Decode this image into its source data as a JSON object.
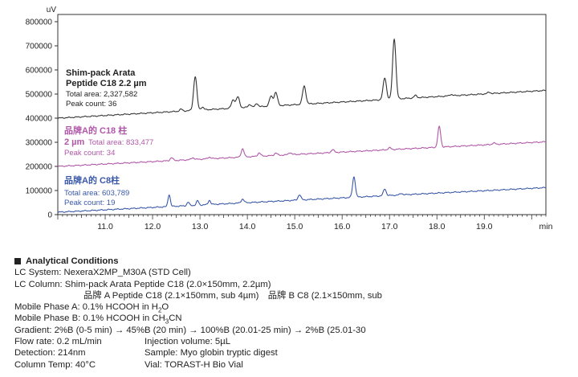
{
  "chart_data": {
    "type": "line",
    "y_unit_label": "uV",
    "x_unit_label": "min",
    "xlim": [
      10.0,
      20.3
    ],
    "ylim": [
      0,
      830000
    ],
    "x_ticks": [
      "11.0",
      "12.0",
      "13.0",
      "14.0",
      "15.0",
      "16.0",
      "17.0",
      "18.0",
      "19.0"
    ],
    "x_tick_values": [
      11,
      12,
      13,
      14,
      15,
      16,
      17,
      18,
      19
    ],
    "y_ticks": [
      "0",
      "100000",
      "200000",
      "300000",
      "400000",
      "500000",
      "600000",
      "700000",
      "800000"
    ],
    "y_tick_values": [
      0,
      100000,
      200000,
      300000,
      400000,
      500000,
      600000,
      700000,
      800000
    ],
    "grid": false,
    "series": [
      {
        "key": "arata",
        "color": "#333333",
        "label_lines": [
          "Shim-pack Arata",
          "Peptide C18 2.2 µm"
        ],
        "area_text": "Total area: 2,327,582",
        "count_text": "Peak count: 36",
        "baseline": [
          [
            10.0,
            400000
          ],
          [
            20.3,
            515000
          ]
        ],
        "peaks": [
          [
            12.6,
            8000,
            0.03
          ],
          [
            12.9,
            140000,
            0.035
          ],
          [
            13.05,
            12000,
            0.03
          ],
          [
            13.7,
            35000,
            0.035
          ],
          [
            13.8,
            45000,
            0.035
          ],
          [
            14.05,
            12000,
            0.03
          ],
          [
            14.2,
            14000,
            0.03
          ],
          [
            14.5,
            40000,
            0.035
          ],
          [
            14.6,
            55000,
            0.035
          ],
          [
            15.2,
            75000,
            0.035
          ],
          [
            16.9,
            90000,
            0.035
          ],
          [
            17.1,
            250000,
            0.035
          ],
          [
            17.55,
            10000,
            0.03
          ],
          [
            18.3,
            6000,
            0.03
          ],
          [
            19.1,
            6000,
            0.03
          ]
        ]
      },
      {
        "key": "brandA_c18",
        "color": "#b057a8",
        "label_lines": [
          "品牌A的 C18 柱"
        ],
        "size_text": "2 µm",
        "area_text": "Total area: 833,477",
        "count_text": "Peak count: 34",
        "baseline": [
          [
            10.0,
            200000
          ],
          [
            20.3,
            302000
          ]
        ],
        "peaks": [
          [
            12.4,
            12000,
            0.03
          ],
          [
            12.85,
            8000,
            0.03
          ],
          [
            13.2,
            7000,
            0.03
          ],
          [
            13.9,
            35000,
            0.03
          ],
          [
            14.25,
            14000,
            0.03
          ],
          [
            14.6,
            10000,
            0.03
          ],
          [
            14.9,
            9000,
            0.03
          ],
          [
            15.8,
            12000,
            0.03
          ],
          [
            17.0,
            8000,
            0.03
          ],
          [
            18.05,
            85000,
            0.03
          ],
          [
            19.2,
            6000,
            0.03
          ]
        ]
      },
      {
        "key": "brandA_c8",
        "color": "#3a58a8",
        "label_lines": [
          "品牌A的 C8柱"
        ],
        "area_text": "Total area: 603,789",
        "count_text": "Peak count: 19",
        "baseline": [
          [
            10.0,
            10000
          ],
          [
            20.3,
            112000
          ]
        ],
        "peaks": [
          [
            12.35,
            50000,
            0.025
          ],
          [
            12.75,
            14000,
            0.025
          ],
          [
            12.95,
            18000,
            0.025
          ],
          [
            13.2,
            18000,
            0.025
          ],
          [
            13.9,
            16000,
            0.03
          ],
          [
            15.1,
            22000,
            0.03
          ],
          [
            16.25,
            85000,
            0.03
          ],
          [
            16.9,
            28000,
            0.03
          ],
          [
            17.25,
            6000,
            0.03
          ]
        ]
      }
    ]
  },
  "conditions": {
    "heading": "Analytical Conditions",
    "lc_system": "LC System: NexeraX2MP_M30A (STD Cell)",
    "lc_column": "LC Column: Shim-pack Arata Peptide C18 (2.0×150mm, 2.2µm)",
    "lc_column_2": "品牌 A Peptide C18 (2.1×150mm, sub 4µm)　品牌 B C8 (2.1×150mm, sub",
    "mobile_a_prefix": "Mobile Phase A: 0.1% HCOOH in H",
    "mobile_a_sub": "2",
    "mobile_a_suffix": "O",
    "mobile_b_prefix": "Mobile Phase B: 0.1% HCOOH in CH",
    "mobile_b_sub": "3",
    "mobile_b_suffix": "CN",
    "gradient": "Gradient: 2%B (0-5 min) → 45%B (20 min) → 100%B (20.01-25 min) → 2%B (25.01-30",
    "flow_rate": "Flow rate: 0.2 mL/min",
    "injection_volume": "Injection volume: 5µL",
    "detection": "Detection: 214nm",
    "sample": "Sample: Myo globin tryptic digest",
    "column_temp": "Column Temp: 40°C",
    "vial": "Vial: TORAST-H Bio Vial"
  }
}
